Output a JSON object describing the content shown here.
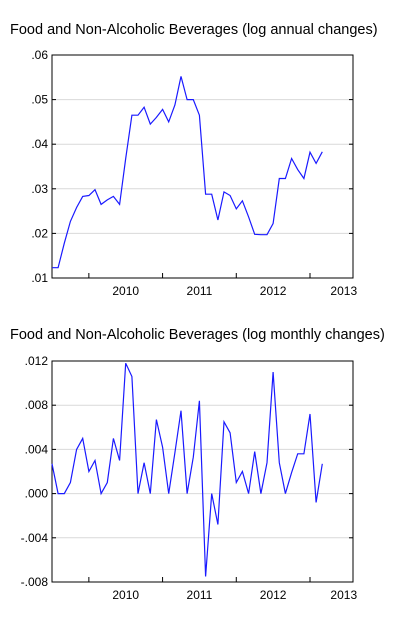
{
  "colors": {
    "series": "#1a1aff",
    "grid": "#d9d9d9",
    "axis": "#000000"
  },
  "chart_data": [
    {
      "type": "line",
      "title": "Food and Non-Alcoholic Beverages (log annual changes)",
      "xlabel": "",
      "ylabel": "",
      "xlim": [
        "2009-07",
        "2013-08"
      ],
      "x_tick_labels": [
        "2010",
        "2011",
        "2012",
        "2013"
      ],
      "ylim": [
        0.01,
        0.06
      ],
      "y_ticks": [
        0.01,
        0.02,
        0.03,
        0.04,
        0.05,
        0.06
      ],
      "y_tick_labels": [
        ".01",
        ".02",
        ".03",
        ".04",
        ".05",
        ".06"
      ],
      "grid": "horizontal",
      "start": "2009-07",
      "freq": "monthly",
      "series": [
        {
          "values": [
            0.0123,
            0.0123,
            0.0178,
            0.0227,
            0.0258,
            0.0283,
            0.0285,
            0.0298,
            0.0265,
            0.0275,
            0.0283,
            0.0265,
            0.0368,
            0.0465,
            0.0465,
            0.0483,
            0.0445,
            0.046,
            0.0478,
            0.045,
            0.0488,
            0.0552,
            0.05,
            0.05,
            0.0465,
            0.0288,
            0.0288,
            0.023,
            0.0293,
            0.0285,
            0.0255,
            0.0273,
            0.0237,
            0.0198,
            0.0197,
            0.0197,
            0.0222,
            0.0323,
            0.0323,
            0.0368,
            0.0343,
            0.0323,
            0.0382,
            0.0357,
            0.0383
          ]
        }
      ]
    },
    {
      "type": "line",
      "title": "Food and Non-Alcoholic Beverages (log monthly changes)",
      "xlabel": "",
      "ylabel": "",
      "xlim": [
        "2009-07",
        "2013-08"
      ],
      "x_tick_labels": [
        "2010",
        "2011",
        "2012",
        "2013"
      ],
      "ylim": [
        -0.008,
        0.012
      ],
      "y_ticks": [
        -0.008,
        -0.004,
        0.0,
        0.004,
        0.008,
        0.012
      ],
      "y_tick_labels": [
        "-.008",
        "-.004",
        ".000",
        ".004",
        ".008",
        ".012"
      ],
      "grid": "horizontal",
      "start": "2009-07",
      "freq": "monthly",
      "series": [
        {
          "values": [
            0.0027,
            0.0,
            0.0,
            0.001,
            0.004,
            0.005,
            0.002,
            0.003,
            0.0,
            0.001,
            0.005,
            0.003,
            0.0118,
            0.0106,
            0.0,
            0.0028,
            0.0,
            0.0067,
            0.0042,
            0.0,
            0.0037,
            0.0075,
            0.0,
            0.0033,
            0.0084,
            -0.0075,
            0.0,
            -0.0028,
            0.0065,
            0.0055,
            0.001,
            0.002,
            0.0,
            0.0038,
            0.0,
            0.0028,
            0.011,
            0.0028,
            0.0,
            0.0019,
            0.0036,
            0.0036,
            0.0072,
            -0.0008,
            0.0027
          ]
        }
      ]
    }
  ]
}
